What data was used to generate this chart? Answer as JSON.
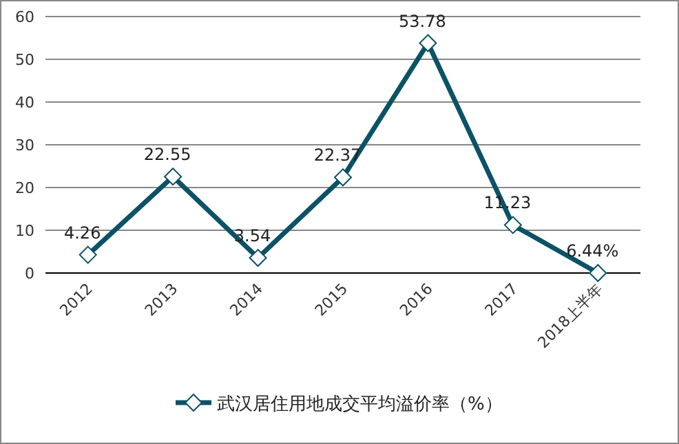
{
  "chart_data": {
    "type": "line",
    "categories": [
      "2012",
      "2013",
      "2014",
      "2015",
      "2016",
      "2017",
      "2018上半年"
    ],
    "series": [
      {
        "name": "武汉居住用地成交平均溢价率（%）",
        "color": "#0b5266",
        "values": [
          4.26,
          22.55,
          3.54,
          22.37,
          53.78,
          11.23,
          0
        ],
        "value_labels": [
          "4.26",
          "22.55",
          "3.54",
          "22.37",
          "53.78",
          "11.23",
          null
        ]
      }
    ],
    "annotations": [
      {
        "text": "6.44%",
        "x": "2018上半年",
        "y": 0
      }
    ],
    "ylim": [
      0,
      60
    ],
    "yticks": [
      0,
      10,
      20,
      30,
      40,
      50,
      60
    ],
    "grid": "y",
    "legend": "bottom",
    "marker": "diamond",
    "line_style": "solid"
  }
}
